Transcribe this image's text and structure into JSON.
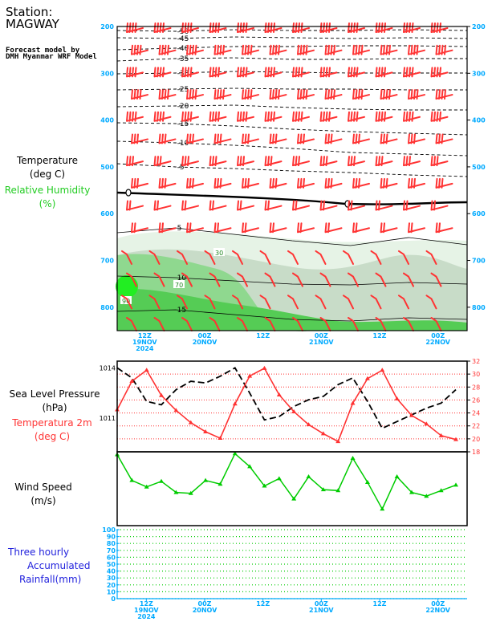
{
  "station": {
    "line1": "Station:",
    "line2": "MAGWAY"
  },
  "forecast": {
    "line1": "Forecast model by",
    "line2": "DMH Myanmar WRF Model"
  },
  "labels": {
    "temperature": "Temperature",
    "temp_unit": "(deg C)",
    "rh": "Relative Humidity",
    "rh_unit": "(%)",
    "slp": "Sea Level Pressure",
    "slp_unit": "(hPa)",
    "t2m": "Temperatura 2m",
    "t2m_unit": "(deg C)",
    "wind": "Wind Speed",
    "wind_unit": "(m/s)",
    "rain1": "Three hourly",
    "rain2": "Accumulated",
    "rain3": "Rainfall(mm)"
  },
  "colors": {
    "temp_line": "#000000",
    "rh_fill": "#22cc22",
    "barb": "#ff3333",
    "axis_label": "#00aaff",
    "t2m": "#ff3333",
    "slp": "#000000",
    "wind": "#00cc00",
    "grid": "#ff3333",
    "rain_grid": "#00cc00"
  },
  "time_labels": [
    {
      "t": 0.5,
      "lines": [
        "12Z",
        "19NOV",
        "2024"
      ]
    },
    {
      "t": 1.5,
      "lines": [
        "00Z",
        "20NOV"
      ]
    },
    {
      "t": 2.5,
      "lines": [
        "12Z"
      ]
    },
    {
      "t": 3.5,
      "lines": [
        "00Z",
        "21NOV"
      ]
    },
    {
      "t": 4.5,
      "lines": [
        "12Z"
      ]
    },
    {
      "t": 5.5,
      "lines": [
        "00Z",
        "22NOV"
      ]
    }
  ],
  "chart_data": [
    {
      "type": "heatmap",
      "title": "Temperature (deg C) / Relative Humidity (%) cross-section",
      "pressure_levels_hPa": [
        200,
        300,
        400,
        500,
        600,
        700,
        800
      ],
      "ylim": [
        200,
        850
      ],
      "temperature_contours": [
        -50,
        -45,
        -40,
        -35,
        -30,
        -25,
        -20,
        -15,
        -10,
        -5,
        0,
        5,
        10,
        15
      ],
      "rh_contour_labels": [
        30,
        70,
        90
      ],
      "time_ticks": [
        "12Z 19NOV 2024",
        "00Z 20NOV",
        "12Z",
        "00Z 21NOV",
        "12Z",
        "00Z 22NOV"
      ]
    },
    {
      "type": "line",
      "title": "Sea Level Pressure (hPa) / Temperatura 2m (deg C)",
      "x_step_hours": 3,
      "slp_ticks": [
        1011,
        1014
      ],
      "t2m_ticks": [
        18,
        20,
        22,
        24,
        26,
        28,
        30,
        32
      ],
      "t2m_ylim": [
        18,
        32
      ],
      "slp_ylim": [
        1009.0,
        1014.4
      ],
      "series": [
        {
          "name": "Temperatura 2m",
          "values": [
            24.5,
            28.9,
            30.6,
            26.7,
            24.4,
            22.5,
            21.1,
            20.1,
            25.4,
            29.7,
            30.9,
            26.8,
            24.2,
            22.2,
            20.8,
            19.6,
            25.5,
            29.3,
            30.6,
            26.2,
            23.6,
            22.3,
            20.5,
            19.9
          ]
        },
        {
          "name": "Sea Level Pressure",
          "values": [
            1014.0,
            1013.4,
            1012.0,
            1011.8,
            1012.7,
            1013.2,
            1013.1,
            1013.5,
            1014.0,
            1012.5,
            1010.9,
            1011.1,
            1011.7,
            1012.1,
            1012.3,
            1013.0,
            1013.4,
            1012.0,
            1010.4,
            1010.8,
            1011.2,
            1011.6,
            1011.9,
            1012.7
          ]
        }
      ]
    },
    {
      "type": "line",
      "title": "Wind Speed (m/s)",
      "ylim": [
        0,
        8
      ],
      "series": [
        {
          "name": "Wind Speed",
          "values": [
            7.7,
            4.9,
            4.2,
            4.8,
            3.6,
            3.5,
            4.9,
            4.5,
            7.8,
            6.4,
            4.3,
            5.1,
            2.9,
            5.3,
            3.9,
            3.8,
            7.3,
            4.7,
            1.8,
            5.3,
            3.6,
            3.2,
            3.8,
            4.4
          ]
        }
      ]
    },
    {
      "type": "bar",
      "title": "Three hourly Accumulated Rainfall(mm)",
      "ylim": [
        0,
        100
      ],
      "yticks": [
        0,
        10,
        20,
        30,
        40,
        50,
        60,
        70,
        80,
        90,
        100
      ],
      "values": []
    }
  ]
}
